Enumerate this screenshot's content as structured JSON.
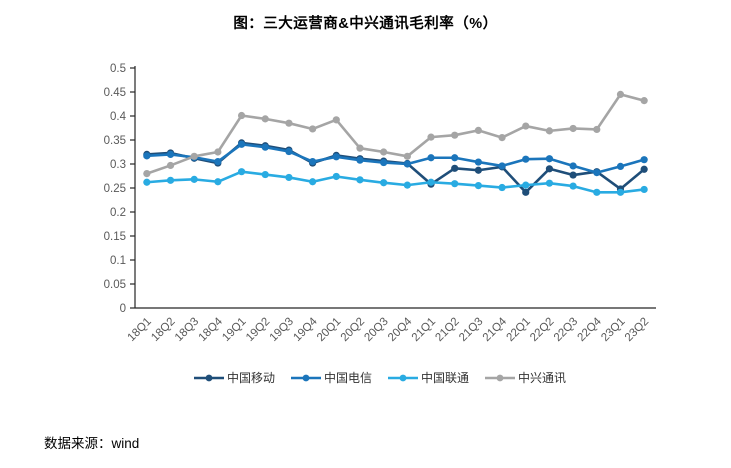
{
  "title": "图：三大运营商&中兴通讯毛利率（%）",
  "source": "数据来源：wind",
  "colors": {
    "axis_line": "#262626",
    "axis_text": "#595959",
    "legend_text": "#333333",
    "background": "#ffffff",
    "series_mobile": "#1F4E79",
    "series_telecom": "#1B75BB",
    "series_unicom": "#29ABE2",
    "series_zte": "#A5A5A5"
  },
  "chart_data": {
    "type": "line",
    "title": "图：三大运营商&中兴通讯毛利率（%）",
    "xlabel": "",
    "ylabel": "",
    "ylim": [
      0,
      0.5
    ],
    "grid": false,
    "legend_position": "bottom",
    "marker": "circle",
    "yticks": [
      "0",
      "0.05",
      "0.1",
      "0.15",
      "0.2",
      "0.25",
      "0.3",
      "0.35",
      "0.4",
      "0.45",
      "0.5"
    ],
    "categories": [
      "18Q1",
      "18Q2",
      "18Q3",
      "18Q4",
      "19Q1",
      "19Q2",
      "19Q3",
      "19Q4",
      "20Q1",
      "20Q2",
      "20Q3",
      "20Q4",
      "21Q1",
      "21Q2",
      "21Q3",
      "21Q4",
      "22Q1",
      "22Q2",
      "22Q3",
      "22Q4",
      "23Q1",
      "23Q2"
    ],
    "series": [
      {
        "name": "中国移动",
        "color": "#1F4E79",
        "values": [
          0.32,
          0.323,
          0.312,
          0.302,
          0.344,
          0.338,
          0.329,
          0.302,
          0.318,
          0.311,
          0.306,
          0.301,
          0.258,
          0.291,
          0.287,
          0.294,
          0.241,
          0.29,
          0.277,
          0.284,
          0.248,
          0.289
        ]
      },
      {
        "name": "中国电信",
        "color": "#1B75BB",
        "values": [
          0.317,
          0.32,
          0.314,
          0.305,
          0.341,
          0.335,
          0.326,
          0.305,
          0.315,
          0.308,
          0.303,
          0.3,
          0.313,
          0.313,
          0.304,
          0.296,
          0.31,
          0.311,
          0.296,
          0.282,
          0.295,
          0.309
        ]
      },
      {
        "name": "中国联通",
        "color": "#29ABE2",
        "values": [
          0.262,
          0.266,
          0.268,
          0.263,
          0.284,
          0.278,
          0.272,
          0.263,
          0.274,
          0.267,
          0.261,
          0.256,
          0.262,
          0.259,
          0.255,
          0.251,
          0.256,
          0.26,
          0.254,
          0.241,
          0.241,
          0.247
        ]
      },
      {
        "name": "中兴通讯",
        "color": "#A5A5A5",
        "values": [
          0.28,
          0.297,
          0.316,
          0.325,
          0.401,
          0.394,
          0.385,
          0.373,
          0.392,
          0.333,
          0.325,
          0.316,
          0.356,
          0.36,
          0.37,
          0.355,
          0.379,
          0.369,
          0.374,
          0.372,
          0.445,
          0.432
        ]
      }
    ]
  }
}
